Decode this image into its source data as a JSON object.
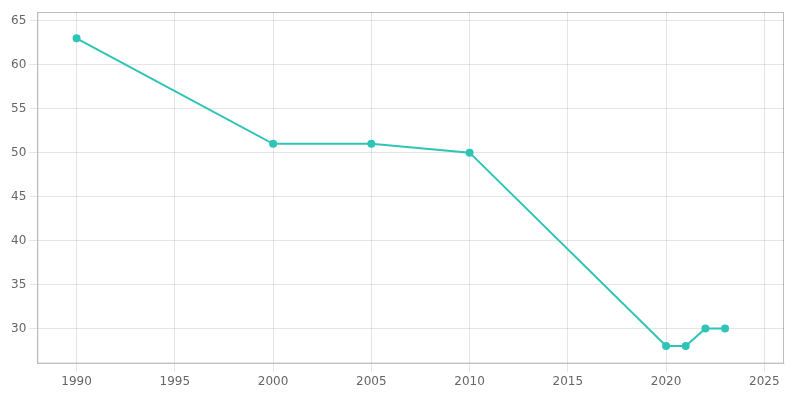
{
  "chart_data": {
    "type": "line",
    "x": [
      1990,
      2000,
      2005,
      2010,
      2020,
      2021,
      2022,
      2023
    ],
    "values": [
      63,
      51,
      51,
      50,
      28,
      28,
      30,
      30
    ],
    "color": "#2ec4b6",
    "marker": "circle",
    "xlim": [
      1988,
      2026
    ],
    "ylim": [
      26,
      66
    ],
    "xticks": [
      1990,
      1995,
      2000,
      2005,
      2010,
      2015,
      2020,
      2025
    ],
    "yticks": [
      30,
      35,
      40,
      45,
      50,
      55,
      60,
      65
    ],
    "grid": true
  }
}
